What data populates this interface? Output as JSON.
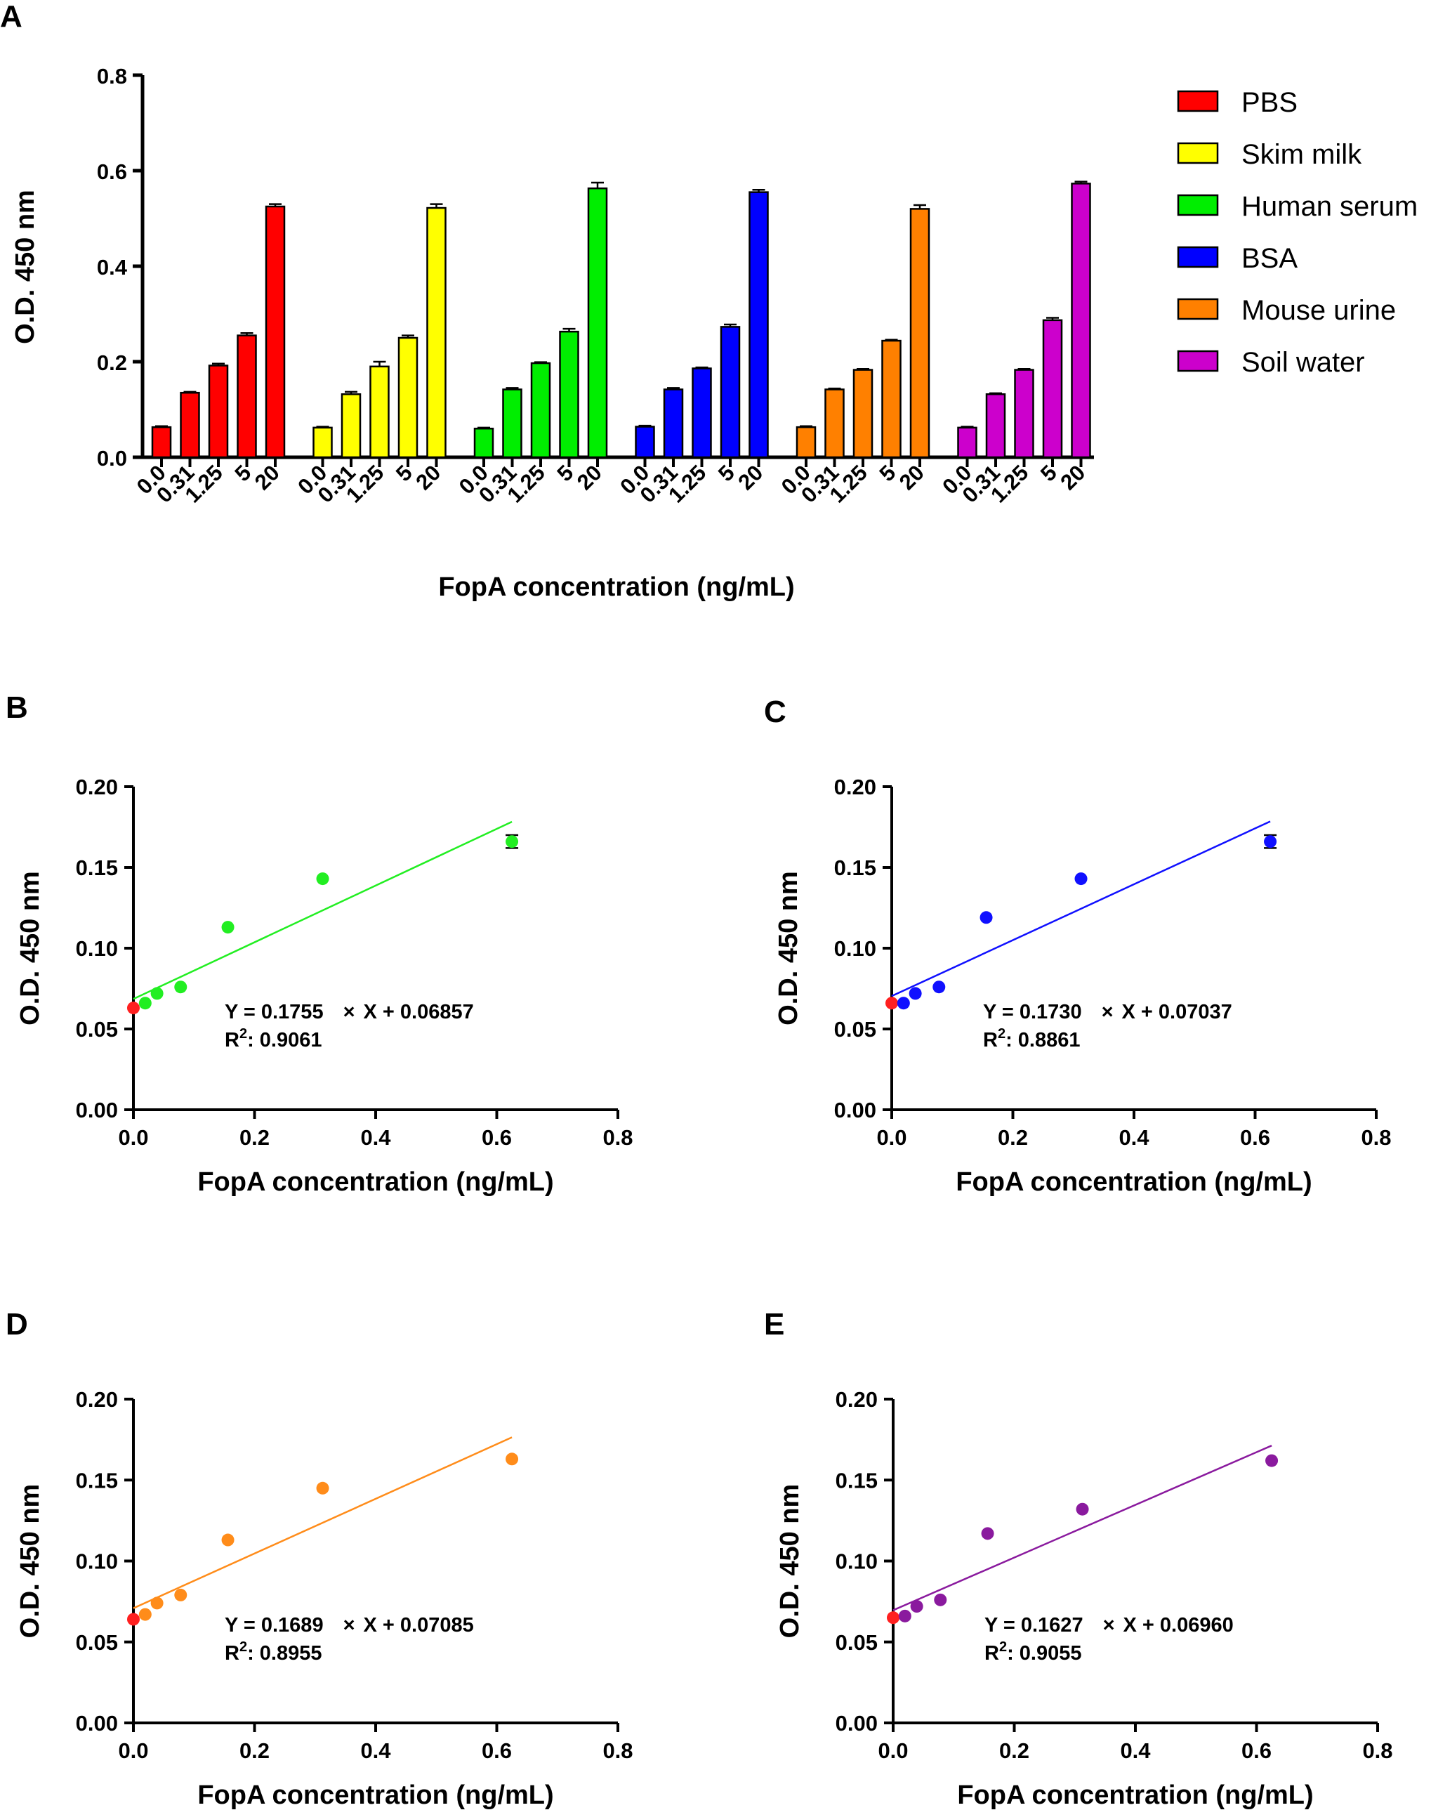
{
  "chart_data": [
    {
      "panel": "A",
      "type": "bar",
      "xlabel": "FopA concentration (ng/mL)",
      "ylabel": "O.D. 450 nm",
      "ylim": [
        0,
        0.8
      ],
      "yticks": [
        "0.0",
        "0.2",
        "0.4",
        "0.6",
        "0.8"
      ],
      "categories": [
        "0.0",
        "0.31",
        "1.25",
        "5",
        "20"
      ],
      "legend_position": "top-right",
      "series": [
        {
          "name": "PBS",
          "color": "#ff0000",
          "values": [
            0.063,
            0.135,
            0.192,
            0.255,
            0.525
          ],
          "errors": [
            0.002,
            0.002,
            0.004,
            0.005,
            0.005
          ]
        },
        {
          "name": "Skim milk",
          "color": "#ffff00",
          "values": [
            0.062,
            0.132,
            0.19,
            0.25,
            0.522
          ],
          "errors": [
            0.002,
            0.005,
            0.01,
            0.005,
            0.008
          ]
        },
        {
          "name": "Human serum",
          "color": "#00ee00",
          "values": [
            0.06,
            0.142,
            0.197,
            0.263,
            0.563
          ],
          "errors": [
            0.002,
            0.003,
            0.002,
            0.006,
            0.012
          ]
        },
        {
          "name": "BSA",
          "color": "#0000ff",
          "values": [
            0.064,
            0.142,
            0.186,
            0.273,
            0.555
          ],
          "errors": [
            0.002,
            0.003,
            0.002,
            0.005,
            0.005
          ]
        },
        {
          "name": "Mouse urine",
          "color": "#ff8000",
          "values": [
            0.063,
            0.142,
            0.183,
            0.244,
            0.52
          ],
          "errors": [
            0.002,
            0.002,
            0.002,
            0.002,
            0.008
          ]
        },
        {
          "name": "Soil water",
          "color": "#cc00cc",
          "values": [
            0.062,
            0.132,
            0.183,
            0.287,
            0.573
          ],
          "errors": [
            0.002,
            0.002,
            0.002,
            0.005,
            0.004
          ]
        }
      ]
    },
    {
      "panel": "B",
      "type": "scatter",
      "xlabel": "FopA concentration (ng/mL)",
      "ylabel": "O.D. 450 nm",
      "xlim": [
        0,
        0.8
      ],
      "ylim": [
        0,
        0.2
      ],
      "xticks": [
        "0.0",
        "0.2",
        "0.4",
        "0.6",
        "0.8"
      ],
      "yticks": [
        "0.00",
        "0.05",
        "0.10",
        "0.15",
        "0.20"
      ],
      "color": "#22ee22",
      "zero_color": "#ff2020",
      "x": [
        0,
        0.0195,
        0.039,
        0.078,
        0.156,
        0.3125,
        0.625
      ],
      "y": [
        0.063,
        0.066,
        0.072,
        0.076,
        0.113,
        0.143,
        0.166
      ],
      "errors": [
        0,
        0,
        0,
        0,
        0,
        0,
        0.004
      ],
      "fit": {
        "slope": 0.1755,
        "intercept": 0.06857,
        "x_range": [
          0,
          0.625
        ]
      },
      "equation_prefix": "Y = 0.1755",
      "equation_suffix": "X + 0.06857",
      "r2_label": "R",
      "r2_sup": "2",
      "r2_value": ": 0.9061"
    },
    {
      "panel": "C",
      "type": "scatter",
      "xlabel": "FopA concentration (ng/mL)",
      "ylabel": "O.D. 450 nm",
      "xlim": [
        0,
        0.8
      ],
      "ylim": [
        0,
        0.2
      ],
      "xticks": [
        "0.0",
        "0.2",
        "0.4",
        "0.6",
        "0.8"
      ],
      "yticks": [
        "0.00",
        "0.05",
        "0.10",
        "0.15",
        "0.20"
      ],
      "color": "#1010ff",
      "zero_color": "#ff2020",
      "x": [
        0,
        0.0195,
        0.039,
        0.078,
        0.156,
        0.3125,
        0.625
      ],
      "y": [
        0.066,
        0.066,
        0.072,
        0.076,
        0.119,
        0.143,
        0.166
      ],
      "errors": [
        0,
        0,
        0,
        0,
        0,
        0,
        0.004
      ],
      "fit": {
        "slope": 0.173,
        "intercept": 0.07037,
        "x_range": [
          0,
          0.625
        ]
      },
      "equation_prefix": "Y = 0.1730",
      "equation_suffix": "X + 0.07037",
      "r2_label": "R",
      "r2_sup": "2",
      "r2_value": ": 0.8861"
    },
    {
      "panel": "D",
      "type": "scatter",
      "xlabel": "FopA concentration (ng/mL)",
      "ylabel": "O.D. 450 nm",
      "xlim": [
        0,
        0.8
      ],
      "ylim": [
        0,
        0.2
      ],
      "xticks": [
        "0.0",
        "0.2",
        "0.4",
        "0.6",
        "0.8"
      ],
      "yticks": [
        "0.00",
        "0.05",
        "0.10",
        "0.15",
        "0.20"
      ],
      "color": "#ff8c1a",
      "zero_color": "#ff2020",
      "x": [
        0,
        0.0195,
        0.039,
        0.078,
        0.156,
        0.3125,
        0.625
      ],
      "y": [
        0.064,
        0.067,
        0.074,
        0.079,
        0.113,
        0.145,
        0.163
      ],
      "errors": [
        0,
        0,
        0,
        0,
        0,
        0,
        0
      ],
      "fit": {
        "slope": 0.1689,
        "intercept": 0.07085,
        "x_range": [
          0,
          0.625
        ]
      },
      "equation_prefix": "Y = 0.1689",
      "equation_suffix": "X + 0.07085",
      "r2_label": "R",
      "r2_sup": "2",
      "r2_value": ": 0.8955"
    },
    {
      "panel": "E",
      "type": "scatter",
      "xlabel": "FopA concentration (ng/mL)",
      "ylabel": "O.D. 450 nm",
      "xlim": [
        0,
        0.8
      ],
      "ylim": [
        0,
        0.2
      ],
      "xticks": [
        "0.0",
        "0.2",
        "0.4",
        "0.6",
        "0.8"
      ],
      "yticks": [
        "0.00",
        "0.05",
        "0.10",
        "0.15",
        "0.20"
      ],
      "color": "#8a1a9e",
      "zero_color": "#ff2020",
      "x": [
        0,
        0.0195,
        0.039,
        0.078,
        0.156,
        0.3125,
        0.625
      ],
      "y": [
        0.065,
        0.066,
        0.072,
        0.076,
        0.117,
        0.132,
        0.162
      ],
      "errors": [
        0,
        0,
        0,
        0,
        0,
        0,
        0
      ],
      "fit": {
        "slope": 0.1627,
        "intercept": 0.0696,
        "x_range": [
          0,
          0.625
        ]
      },
      "equation_prefix": "Y = 0.1627",
      "equation_suffix": "X + 0.06960",
      "r2_label": "R",
      "r2_sup": "2",
      "r2_value": ": 0.9055"
    }
  ]
}
